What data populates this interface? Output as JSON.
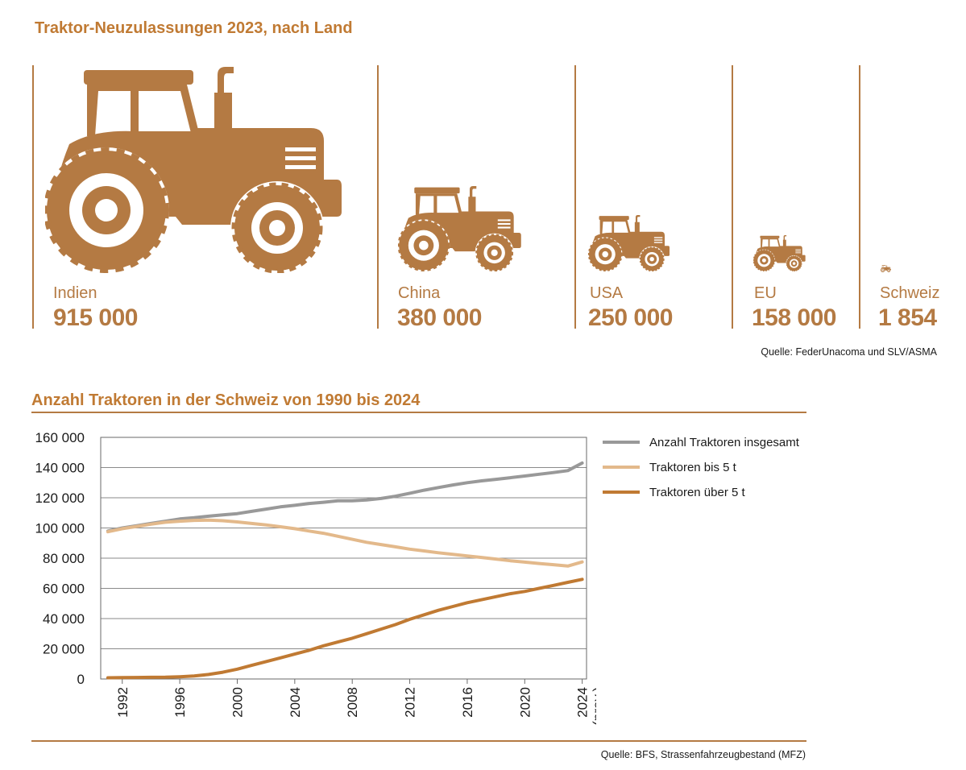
{
  "colors": {
    "accent": "#b47a43",
    "bar_title": "#c07a33",
    "grey": "#999999",
    "light": "#e3b98b",
    "dark": "#c07a33"
  },
  "top": {
    "title": "Traktor-Neuzulassungen 2023, nach Land",
    "countries": [
      {
        "name": "Indien",
        "value": "915 000"
      },
      {
        "name": "China",
        "value": "380 000"
      },
      {
        "name": "USA",
        "value": "250 000"
      },
      {
        "name": "EU",
        "value": "158 000"
      },
      {
        "name": "Schweiz",
        "value": "1 854"
      }
    ],
    "source": "Quelle: FederUnacoma und SLV/ASMA"
  },
  "bottom": {
    "source": "Quelle: BFS, Strassenfahrzeugbestand (MFZ)"
  },
  "chart_data": {
    "type": "line",
    "title": "Anzahl Traktoren in der Schweiz von 1990 bis 2024",
    "xlabel": "",
    "ylabel": "",
    "ylim": [
      0,
      160000
    ],
    "xlim": [
      1990.5,
      2024.3
    ],
    "yticks": [
      0,
      20000,
      40000,
      60000,
      80000,
      100000,
      120000,
      140000,
      160000
    ],
    "ytick_labels": [
      "0",
      "20 000",
      "40 000",
      "60 000",
      "80 000",
      "100 000",
      "120 000",
      "140 000",
      "160 000"
    ],
    "xticks": [
      1992,
      1996,
      2000,
      2004,
      2008,
      2012,
      2016,
      2020,
      2024
    ],
    "xtick_labels": [
      "1992",
      "1996",
      "2000",
      "2004",
      "2008",
      "2012",
      "2016",
      "2020",
      "2024"
    ],
    "xtick_sublabel": "(prov.)",
    "grid": true,
    "x": [
      1991,
      1992,
      1993,
      1994,
      1995,
      1996,
      1997,
      1998,
      1999,
      2000,
      2001,
      2002,
      2003,
      2004,
      2005,
      2006,
      2007,
      2008,
      2009,
      2010,
      2011,
      2012,
      2013,
      2014,
      2015,
      2016,
      2017,
      2018,
      2019,
      2020,
      2021,
      2022,
      2023,
      2024
    ],
    "series": [
      {
        "name": "Anzahl Traktoren insgesamt",
        "color": "#999999",
        "values": [
          98000,
          100000,
          101500,
          103000,
          104500,
          106000,
          106800,
          107800,
          108700,
          109500,
          111000,
          112500,
          114000,
          115000,
          116200,
          117000,
          118000,
          118000,
          118500,
          119500,
          121000,
          123000,
          125000,
          126800,
          128500,
          130000,
          131200,
          132200,
          133300,
          134400,
          135600,
          136700,
          138000,
          143000
        ]
      },
      {
        "name": "Traktoren bis 5 t",
        "color": "#e3b98b",
        "values": [
          97500,
          99500,
          101000,
          102500,
          103800,
          104500,
          105000,
          105200,
          104800,
          104000,
          103000,
          102000,
          100800,
          99500,
          98000,
          96500,
          94500,
          92500,
          90500,
          89000,
          87500,
          86000,
          84800,
          83600,
          82500,
          81500,
          80500,
          79400,
          78300,
          77400,
          76500,
          75700,
          74800,
          77500
        ]
      },
      {
        "name": "Traktoren über 5 t",
        "color": "#c07a33",
        "values": [
          800,
          900,
          1000,
          1100,
          1200,
          1500,
          2000,
          3000,
          4500,
          6500,
          9000,
          11500,
          14000,
          16500,
          19000,
          22000,
          24500,
          27000,
          30000,
          33000,
          36000,
          39500,
          42500,
          45500,
          48000,
          50500,
          52500,
          54500,
          56500,
          58000,
          60000,
          62000,
          64000,
          66000
        ]
      }
    ]
  }
}
